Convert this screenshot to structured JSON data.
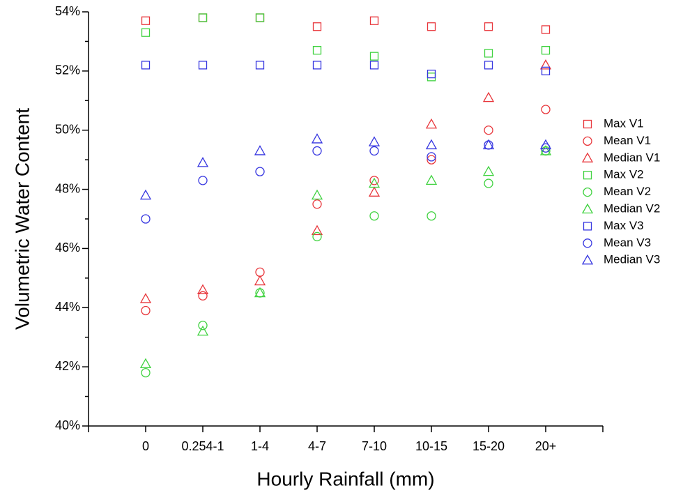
{
  "chart_data": {
    "type": "scatter",
    "x_label": "Hourly Rainfall (mm)",
    "y_label": "Volumetric Water Content",
    "categories": [
      "0",
      "0.254-1",
      "1-4",
      "4-7",
      "7-10",
      "10-15",
      "15-20",
      "20+"
    ],
    "ylim": [
      40,
      54
    ],
    "yticks": [
      {
        "value": 40,
        "label": "40%"
      },
      {
        "value": 42,
        "label": "42%"
      },
      {
        "value": 44,
        "label": "44%"
      },
      {
        "value": 46,
        "label": "46%"
      },
      {
        "value": 48,
        "label": "48%"
      },
      {
        "value": 50,
        "label": "50%"
      },
      {
        "value": 52,
        "label": "52%"
      },
      {
        "value": 54,
        "label": "54%"
      }
    ],
    "yminor_ticks": [
      41,
      43,
      45,
      47,
      49,
      51,
      53
    ],
    "grid": false,
    "legend": "right",
    "series": [
      {
        "name": "Max V1",
        "color": "#e8353a",
        "marker": "square",
        "values": [
          53.7,
          53.8,
          53.8,
          53.5,
          53.7,
          53.5,
          53.5,
          53.4
        ]
      },
      {
        "name": "Mean V1",
        "color": "#e8353a",
        "marker": "circle",
        "values": [
          43.9,
          44.4,
          45.2,
          47.5,
          48.3,
          49.0,
          50.0,
          50.7
        ]
      },
      {
        "name": "Median V1",
        "color": "#e8353a",
        "marker": "triangle",
        "values": [
          44.3,
          44.6,
          44.9,
          46.6,
          47.9,
          50.2,
          51.1,
          52.2
        ]
      },
      {
        "name": "Max V2",
        "color": "#3fd23f",
        "marker": "square",
        "values": [
          53.3,
          53.8,
          53.8,
          52.7,
          52.5,
          51.8,
          52.6,
          52.7
        ]
      },
      {
        "name": "Mean V2",
        "color": "#3fd23f",
        "marker": "circle",
        "values": [
          41.8,
          43.4,
          44.5,
          46.4,
          47.1,
          47.1,
          48.2,
          49.3
        ]
      },
      {
        "name": "Median V2",
        "color": "#3fd23f",
        "marker": "triangle",
        "values": [
          42.1,
          43.2,
          44.5,
          47.8,
          48.2,
          48.3,
          48.6,
          49.3
        ]
      },
      {
        "name": "Max V3",
        "color": "#3535e0",
        "marker": "square",
        "values": [
          52.2,
          52.2,
          52.2,
          52.2,
          52.2,
          51.9,
          52.2,
          52.0
        ]
      },
      {
        "name": "Mean V3",
        "color": "#3535e0",
        "marker": "circle",
        "values": [
          47.0,
          48.3,
          48.6,
          49.3,
          49.3,
          49.1,
          49.5,
          49.4
        ]
      },
      {
        "name": "Median V3",
        "color": "#3535e0",
        "marker": "triangle",
        "values": [
          47.8,
          48.9,
          49.3,
          49.7,
          49.6,
          49.5,
          49.5,
          49.5
        ]
      }
    ]
  }
}
